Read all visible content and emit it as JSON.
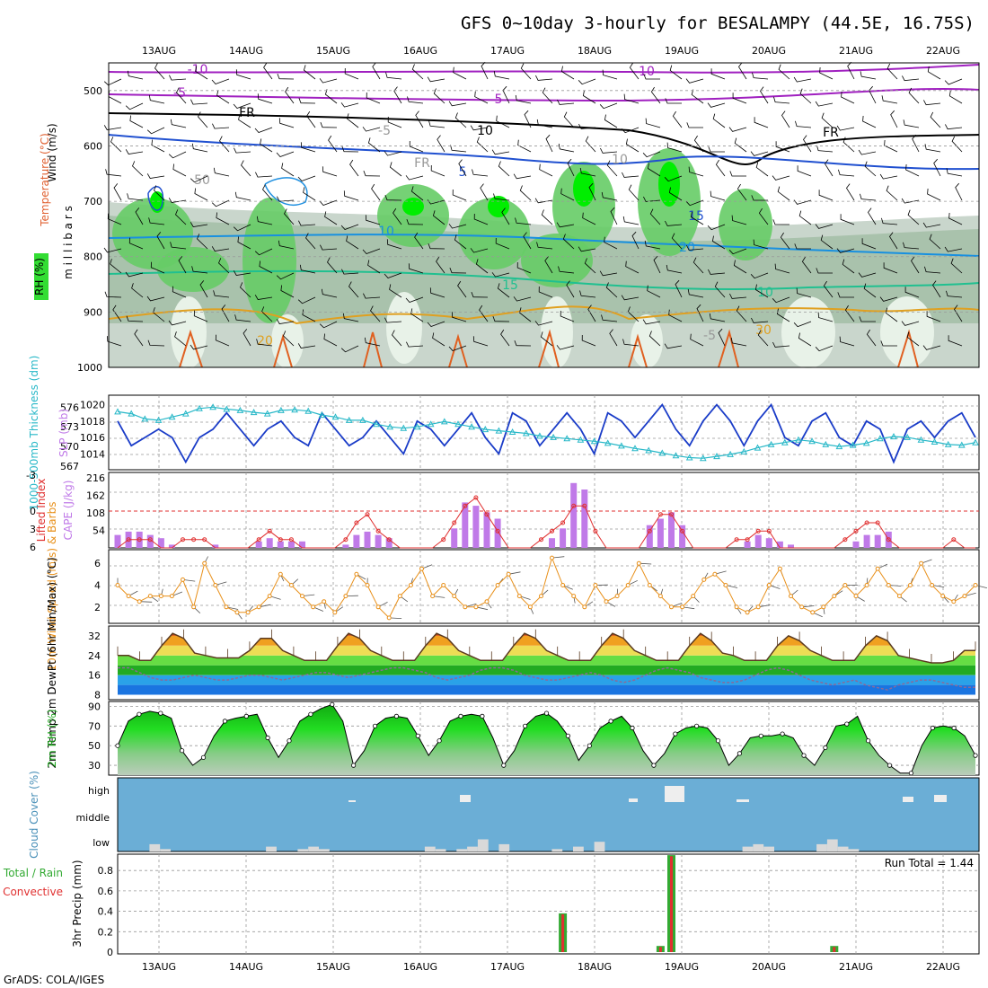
{
  "title": "GFS 0~10day 3-hourly for BESALAMPY (44.5E, 16.75S)",
  "credit": "GrADS: COLA/IGES",
  "dates": [
    "13AUG",
    "14AUG",
    "15AUG",
    "16AUG",
    "17AUG",
    "18AUG",
    "19AUG",
    "20AUG",
    "21AUG",
    "22AUG"
  ],
  "colors": {
    "rh_green": "#33dd33",
    "cloud_blue": "#6baed6",
    "temp_orange": "#f08a1a",
    "slp_blue": "#1a3cc8",
    "thick_cyan": "#28b8c8",
    "cape_purple": "#c07ae8",
    "li_red": "#e03030",
    "wind_orange": "#e8901a",
    "rh2m_green": "#22cc22",
    "precip_green": "#33aa33",
    "precip_red": "#e03030"
  },
  "chart_data": [
    {
      "type": "heatmap",
      "name": "vertical cross-section",
      "ylabel_parts": [
        "Wind (m/s)",
        "Temperature (°C)",
        "RH (%)"
      ],
      "ylabel_unit": "m i l l i b a r s",
      "yticks": [
        "500",
        "600",
        "700",
        "800",
        "900",
        "1000"
      ],
      "ylim": [
        1000,
        450
      ],
      "contour_labels": [
        "-10",
        "-5",
        "FR",
        "5",
        "10",
        "15",
        "20",
        "10",
        "-5",
        "FR",
        "5",
        "10",
        "15",
        "20",
        "10",
        "30",
        "50",
        "10",
        "-5",
        "FR"
      ]
    },
    {
      "type": "line",
      "name": "slp-thickness",
      "ylabel_left": "1000-500mb Thickness (dm)",
      "ylabel_right": "SLP (mb)",
      "thickness_ticks": [
        "576",
        "573",
        "570",
        "567"
      ],
      "slp_ticks": [
        "1020",
        "1018",
        "1016",
        "1014"
      ],
      "ylim_thickness": [
        567,
        577
      ],
      "ylim_slp": [
        1012.5,
        1020.5
      ],
      "slp": [
        1018,
        1015,
        1016,
        1017,
        1016,
        1013,
        1016,
        1017,
        1019,
        1017,
        1015,
        1017,
        1018,
        1016,
        1015,
        1019,
        1017,
        1015,
        1016,
        1018,
        1016,
        1014,
        1018,
        1017,
        1015,
        1017,
        1019,
        1016,
        1014,
        1019,
        1018,
        1015,
        1017,
        1019,
        1017,
        1014,
        1019,
        1018,
        1016,
        1018,
        1020,
        1017,
        1015,
        1018,
        1020,
        1018,
        1015,
        1018,
        1020,
        1016,
        1015,
        1018,
        1019,
        1016,
        1015,
        1018,
        1017,
        1013,
        1017,
        1018,
        1016,
        1018,
        1019,
        1016
      ],
      "thickness": [
        575.3,
        575,
        574.2,
        574,
        574.5,
        575,
        575.8,
        576,
        575.7,
        575.5,
        575.2,
        575,
        575.5,
        575.6,
        575.4,
        574.8,
        574.5,
        574,
        574,
        573.4,
        573,
        572.8,
        573,
        573.4,
        573.8,
        573.4,
        573,
        572.6,
        572.4,
        572.2,
        572,
        571.6,
        571.4,
        571.2,
        571,
        570.8,
        570.5,
        570.1,
        569.7,
        569.4,
        569,
        568.6,
        568.3,
        568.2,
        568.5,
        568.8,
        569.2,
        569.8,
        570.3,
        570.6,
        571,
        570.8,
        570.3,
        570,
        570.2,
        570.5,
        571.2,
        571.5,
        571.4,
        571,
        570.7,
        570.3,
        570.2,
        570.6
      ]
    },
    {
      "type": "bar",
      "name": "cape-li",
      "ylabel_left": "Lifted Index",
      "ylabel_right": "CAPE (J/kg)",
      "li_ticks": [
        "-3",
        "0",
        "3",
        "6"
      ],
      "cape_ticks": [
        "216",
        "162",
        "108",
        "54"
      ],
      "ylim_cape": [
        0,
        216
      ],
      "cape": [
        40,
        50,
        50,
        40,
        30,
        10,
        0,
        0,
        0,
        10,
        0,
        0,
        0,
        20,
        30,
        20,
        20,
        20,
        0,
        0,
        0,
        10,
        40,
        50,
        40,
        30,
        0,
        0,
        0,
        0,
        0,
        60,
        140,
        130,
        110,
        90,
        0,
        0,
        0,
        0,
        30,
        60,
        200,
        180,
        0,
        0,
        0,
        0,
        0,
        70,
        90,
        110,
        70,
        0,
        0,
        0,
        0,
        0,
        20,
        40,
        30,
        20,
        10,
        0,
        0,
        0,
        0,
        0,
        20,
        40,
        40,
        50,
        0,
        0,
        0,
        0,
        0,
        0,
        0,
        0
      ],
      "li": [
        6,
        5,
        5,
        5,
        6,
        6,
        5,
        5,
        5,
        6,
        6,
        6,
        6,
        5,
        4,
        5,
        5,
        6,
        6,
        6,
        6,
        5,
        3,
        2,
        4,
        5,
        6,
        6,
        6,
        6,
        5,
        3,
        1,
        0,
        2,
        4,
        6,
        6,
        6,
        5,
        4,
        3,
        1,
        1,
        4,
        6,
        6,
        6,
        6,
        4,
        2,
        2,
        4,
        6,
        6,
        6,
        6,
        5,
        5,
        4,
        4,
        6,
        6,
        6,
        6,
        6,
        6,
        5,
        4,
        3,
        3,
        5,
        6,
        6,
        6,
        6,
        6,
        5,
        6,
        6
      ]
    },
    {
      "type": "line",
      "name": "10m wind",
      "ylabel": "10m Wind Speed (m/s) & Barbs",
      "yticks": [
        "6",
        "4",
        "2"
      ],
      "ylim": [
        0.5,
        7
      ],
      "values": [
        4,
        3,
        2.5,
        3,
        3,
        3,
        4.5,
        2,
        6,
        4,
        2,
        1.5,
        1.5,
        2,
        3,
        5,
        4,
        3,
        2,
        2.5,
        1.5,
        3,
        5,
        4,
        2,
        1,
        3,
        4,
        5.5,
        3,
        4,
        3,
        2,
        2,
        2.5,
        4,
        5,
        3,
        2,
        3,
        6.5,
        4,
        3,
        2,
        4,
        2.5,
        3,
        4,
        6,
        4,
        3,
        2,
        2,
        3,
        4.5,
        5,
        4,
        2,
        1.5,
        2,
        4,
        5.5,
        3,
        2,
        1.5,
        2,
        3,
        4,
        3,
        4,
        5.5,
        4,
        3,
        4,
        6,
        4,
        3,
        2.5,
        3,
        4
      ]
    },
    {
      "type": "area",
      "name": "2m temp",
      "ylabel": "2m Temp 2m DewPt (6hr Min/Max) (°C)",
      "yticks": [
        "32",
        "24",
        "16",
        "8"
      ],
      "ylim": [
        6,
        36
      ],
      "temp": [
        24,
        24,
        22,
        22,
        28,
        33,
        31,
        25,
        24,
        23,
        23,
        23,
        26,
        31,
        31,
        26,
        24,
        22,
        22,
        22,
        28,
        33,
        31,
        26,
        24,
        22,
        22,
        22,
        28,
        33,
        31,
        26,
        24,
        22,
        22,
        22,
        28,
        33,
        31,
        26,
        24,
        22,
        22,
        22,
        28,
        33,
        31,
        26,
        24,
        22,
        22,
        22,
        28,
        33,
        30,
        25,
        24,
        22,
        22,
        22,
        28,
        32,
        30,
        26,
        24,
        22,
        22,
        22,
        28,
        32,
        30,
        24,
        23,
        22,
        21,
        21,
        22,
        26,
        26
      ],
      "dewpt": [
        19,
        19,
        17,
        15,
        14,
        14,
        15,
        16,
        15,
        14,
        14,
        15,
        16,
        16,
        15,
        14,
        15,
        16,
        17,
        17,
        16,
        15,
        16,
        17,
        18,
        19,
        19,
        18,
        17,
        15,
        14,
        15,
        16,
        18,
        19,
        19,
        18,
        16,
        15,
        14,
        14,
        15,
        16,
        17,
        16,
        14,
        13,
        14,
        16,
        18,
        19,
        18,
        17,
        15,
        14,
        13,
        13,
        14,
        16,
        18,
        19,
        18,
        16,
        14,
        13,
        12,
        13,
        14,
        12,
        11,
        10,
        12,
        13,
        14,
        14,
        13,
        12,
        11,
        11
      ]
    },
    {
      "type": "area",
      "name": "2m rh",
      "ylabel": "2m RH (%)",
      "yticks": [
        "90",
        "70",
        "50",
        "30"
      ],
      "ylim": [
        20,
        95
      ],
      "values": [
        50,
        75,
        82,
        85,
        83,
        78,
        45,
        30,
        38,
        60,
        75,
        78,
        80,
        82,
        58,
        38,
        55,
        75,
        82,
        88,
        92,
        75,
        30,
        45,
        70,
        78,
        80,
        78,
        60,
        40,
        55,
        75,
        80,
        82,
        80,
        58,
        30,
        45,
        70,
        80,
        83,
        75,
        60,
        35,
        50,
        68,
        75,
        80,
        68,
        45,
        30,
        42,
        62,
        68,
        70,
        68,
        55,
        30,
        42,
        58,
        60,
        60,
        62,
        58,
        40,
        30,
        48,
        70,
        72,
        80,
        55,
        40,
        30,
        22,
        22,
        50,
        68,
        70,
        68,
        60,
        40
      ]
    },
    {
      "type": "bar",
      "name": "cloud cover",
      "ylabel": "Cloud Cover (%)",
      "levels": [
        "high",
        "middle",
        "low"
      ],
      "low": [
        0,
        0,
        0,
        30,
        10,
        0,
        0,
        0,
        0,
        0,
        0,
        0,
        0,
        0,
        20,
        0,
        0,
        10,
        20,
        10,
        0,
        0,
        0,
        0,
        0,
        0,
        0,
        0,
        0,
        20,
        10,
        0,
        10,
        20,
        50,
        0,
        30,
        0,
        0,
        0,
        0,
        10,
        0,
        20,
        0,
        40,
        0,
        0,
        0,
        0,
        0,
        0,
        0,
        0,
        0,
        0,
        0,
        0,
        0,
        20,
        30,
        20,
        0,
        0,
        0,
        0,
        30,
        50,
        20,
        10,
        0,
        0,
        0,
        0,
        0,
        0,
        0,
        0,
        0,
        0,
        0
      ]
    },
    {
      "type": "bar",
      "name": "3hr precip",
      "ylabel_parts": [
        "Total / Rain",
        "Convective"
      ],
      "ylabel": "3hr Precip (mm)",
      "annotation_label": "Run Total = ",
      "annotation_value": "1.44",
      "yticks": [
        "0.8",
        "0.6",
        "0.4",
        "0.2",
        "0"
      ],
      "ylim": [
        0,
        0.96
      ],
      "total": [
        0,
        0,
        0,
        0,
        0,
        0,
        0,
        0,
        0,
        0,
        0,
        0,
        0,
        0,
        0,
        0,
        0,
        0,
        0,
        0,
        0,
        0,
        0,
        0,
        0,
        0,
        0,
        0,
        0,
        0,
        0,
        0,
        0,
        0,
        0,
        0,
        0,
        0,
        0,
        0,
        0,
        0.38,
        0,
        0,
        0,
        0,
        0,
        0,
        0,
        0,
        0.06,
        0.95,
        0,
        0,
        0,
        0,
        0,
        0,
        0,
        0,
        0,
        0,
        0,
        0,
        0,
        0,
        0.06,
        0,
        0,
        0,
        0,
        0,
        0,
        0,
        0,
        0,
        0,
        0,
        0,
        0
      ],
      "convective": [
        0,
        0,
        0,
        0,
        0,
        0,
        0,
        0,
        0,
        0,
        0,
        0,
        0,
        0,
        0,
        0,
        0,
        0,
        0,
        0,
        0,
        0,
        0,
        0,
        0,
        0,
        0,
        0,
        0,
        0,
        0,
        0,
        0,
        0,
        0,
        0,
        0,
        0,
        0,
        0,
        0,
        0.37,
        0,
        0,
        0,
        0,
        0,
        0,
        0,
        0,
        0.05,
        0.94,
        0,
        0,
        0,
        0,
        0,
        0,
        0,
        0,
        0,
        0,
        0,
        0,
        0,
        0,
        0.05,
        0,
        0,
        0,
        0,
        0,
        0,
        0,
        0,
        0,
        0,
        0,
        0,
        0
      ]
    }
  ]
}
